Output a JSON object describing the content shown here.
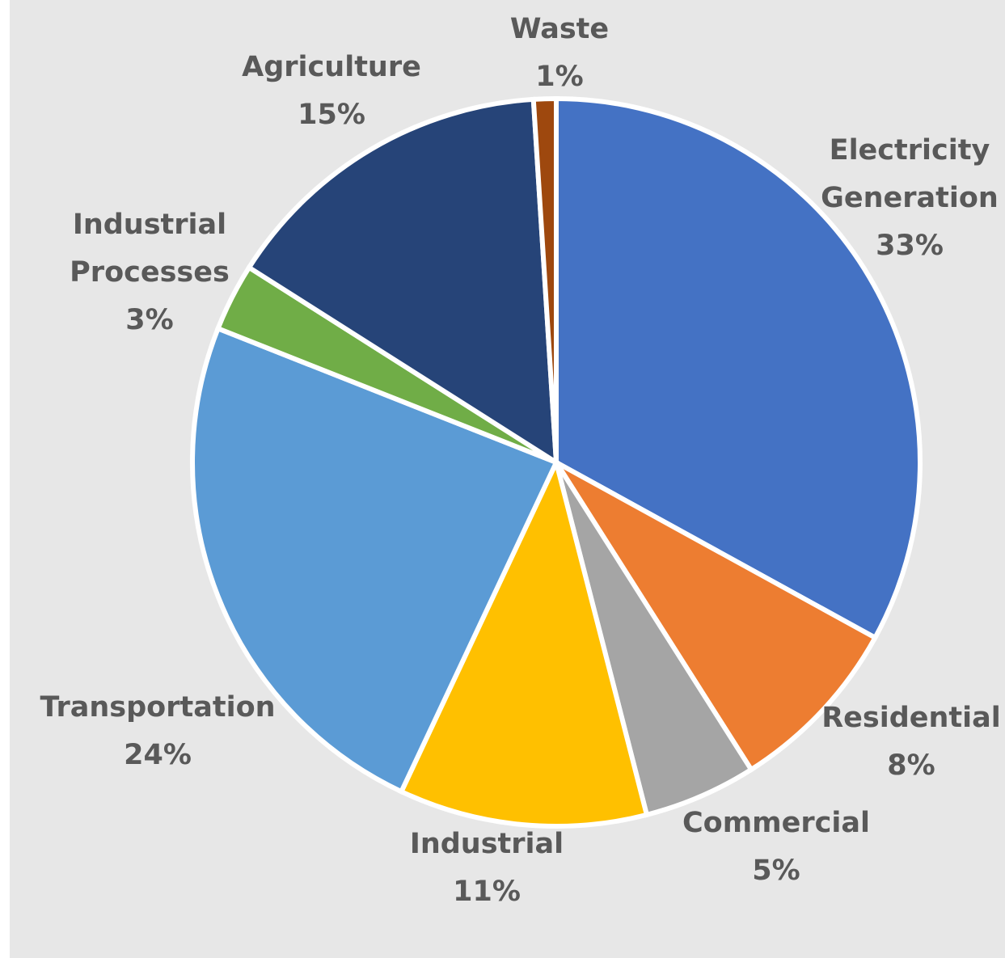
{
  "chart_data": {
    "type": "pie",
    "title": "",
    "background_color": "#e7e7e7",
    "slices": [
      {
        "category_lines": [
          "Electricity",
          "Generation"
        ],
        "pct_label": "33%",
        "value": 33,
        "color": "#4472c4"
      },
      {
        "category_lines": [
          "Residential"
        ],
        "pct_label": "8%",
        "value": 8,
        "color": "#ed7d31"
      },
      {
        "category_lines": [
          "Commercial"
        ],
        "pct_label": "5%",
        "value": 5,
        "color": "#a5a5a5"
      },
      {
        "category_lines": [
          "Industrial"
        ],
        "pct_label": "11%",
        "value": 11,
        "color": "#ffc000"
      },
      {
        "category_lines": [
          "Transportation"
        ],
        "pct_label": "24%",
        "value": 24,
        "color": "#5b9bd5"
      },
      {
        "category_lines": [
          "Industrial",
          "Processes"
        ],
        "pct_label": "3%",
        "value": 3,
        "color": "#70ad47"
      },
      {
        "category_lines": [
          "Agriculture"
        ],
        "pct_label": "15%",
        "value": 15,
        "color": "#264478"
      },
      {
        "category_lines": [
          "Waste"
        ],
        "pct_label": "1%",
        "value": 1,
        "color": "#9e480e"
      }
    ]
  }
}
